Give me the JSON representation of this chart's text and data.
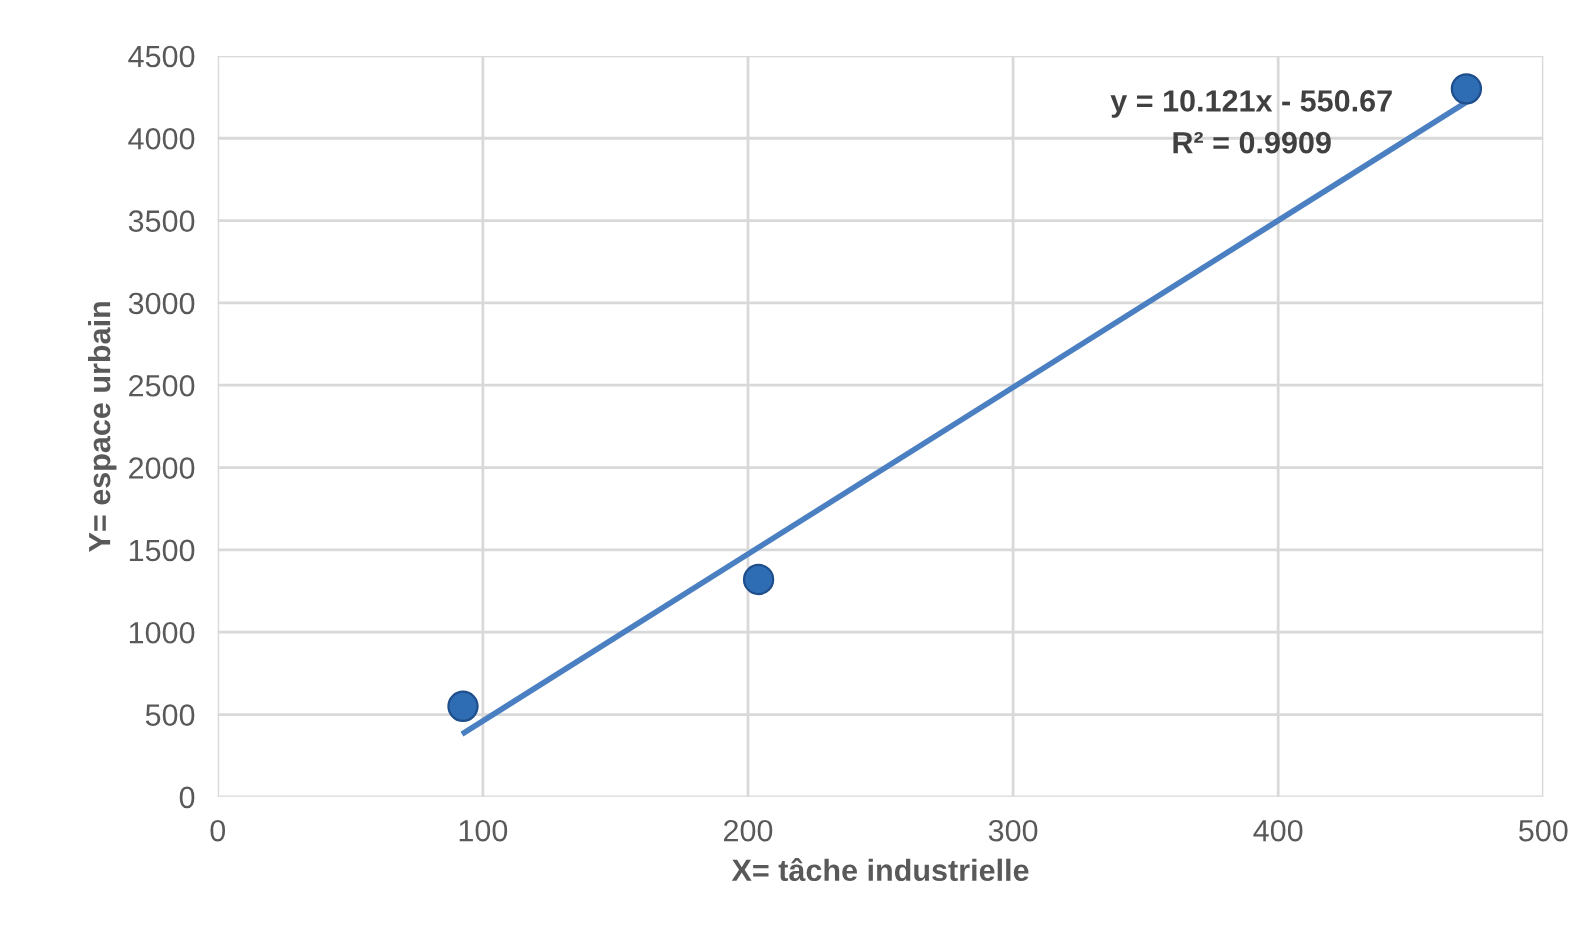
{
  "chart_data": {
    "type": "scatter",
    "xlabel": "X= tâche industrielle",
    "ylabel": "Y= espace urbain",
    "series": [
      {
        "color": "#2e6db4",
        "x": [
          92.5,
          204,
          471
        ],
        "values": [
          550,
          1320,
          4300
        ],
        "marker": "circle"
      },
      {
        "type": "line",
        "color": "#4a7fc1",
        "x": [
          93,
          471
        ],
        "values": [
          390,
          4220
        ]
      }
    ],
    "annotations": [
      "y = 10.121x - 550.67\nR² = 0.9909"
    ],
    "xlim": [
      0,
      500
    ],
    "xticks": [
      0,
      100,
      200,
      300,
      400,
      500
    ],
    "ylim": [
      0,
      4500
    ],
    "yticks": [
      0,
      500,
      1000,
      1500,
      2000,
      2500,
      3000,
      3500,
      4000,
      4500
    ],
    "grid": true
  }
}
